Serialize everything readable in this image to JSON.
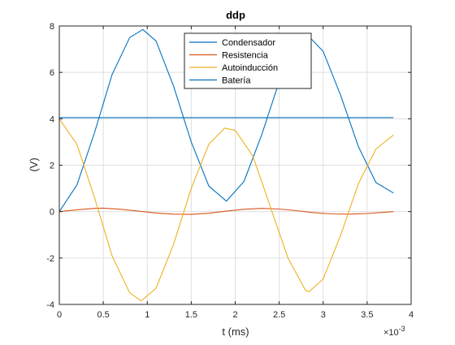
{
  "chart_data": {
    "type": "line",
    "title": "ddp",
    "xlabel": "t (ms)",
    "ylabel": "(V)",
    "x_multiplier": "×10",
    "x_multiplier_exp": "-3",
    "xlim": [
      0,
      0.004
    ],
    "ylim": [
      -4,
      8
    ],
    "xticks": [
      0,
      0.0005,
      0.001,
      0.0015,
      0.002,
      0.0025,
      0.003,
      0.0035,
      0.004
    ],
    "xtick_labels": [
      "0",
      "0.5",
      "1",
      "1.5",
      "2",
      "2.5",
      "3",
      "3.5",
      "4"
    ],
    "yticks": [
      -4,
      -2,
      0,
      2,
      4,
      6,
      8
    ],
    "ytick_labels": [
      "-4",
      "-2",
      "0",
      "2",
      "4",
      "6",
      "8"
    ],
    "grid": true,
    "legend_position": "top-center",
    "series": [
      {
        "name": "Condensador",
        "color": "#0072BD",
        "x": [
          0,
          0.0002,
          0.0004,
          0.0006,
          0.0008,
          0.00095,
          0.0011,
          0.0013,
          0.0015,
          0.0017,
          0.0019,
          0.0021,
          0.0023,
          0.0025,
          0.0027,
          0.00285,
          0.003,
          0.0032,
          0.0034,
          0.0036,
          0.0038
        ],
        "y": [
          0,
          1.15,
          3.4,
          5.9,
          7.5,
          7.85,
          7.35,
          5.4,
          3.0,
          1.1,
          0.45,
          1.3,
          3.3,
          5.6,
          7.2,
          7.5,
          6.9,
          5.0,
          2.8,
          1.25,
          0.8
        ]
      },
      {
        "name": "Resistencia",
        "color": "#D95319",
        "x": [
          0,
          0.0002,
          0.0004,
          0.0005,
          0.0007,
          0.0009,
          0.0011,
          0.0013,
          0.0015,
          0.0017,
          0.0019,
          0.0021,
          0.0023,
          0.0025,
          0.0027,
          0.0029,
          0.0031,
          0.0033,
          0.0035,
          0.0038
        ],
        "y": [
          0,
          0.08,
          0.14,
          0.15,
          0.1,
          0.02,
          -0.06,
          -0.11,
          -0.12,
          -0.07,
          0.02,
          0.1,
          0.14,
          0.11,
          0.04,
          -0.05,
          -0.1,
          -0.11,
          -0.08,
          0.0
        ]
      },
      {
        "name": "Autoinducción",
        "color": "#EDB120",
        "x": [
          0,
          0.0002,
          0.0004,
          0.0006,
          0.0008,
          0.00093,
          0.0011,
          0.0013,
          0.0015,
          0.0017,
          0.00188,
          0.002,
          0.0022,
          0.0024,
          0.0026,
          0.0028,
          0.00284,
          0.003,
          0.0032,
          0.0034,
          0.0036,
          0.0038
        ],
        "y": [
          4.0,
          2.9,
          0.6,
          -1.9,
          -3.5,
          -3.85,
          -3.3,
          -1.4,
          1.0,
          2.9,
          3.6,
          3.5,
          2.4,
          0.2,
          -2.0,
          -3.4,
          -3.45,
          -2.9,
          -1.0,
          1.2,
          2.7,
          3.3
        ]
      },
      {
        "name": "Batería",
        "color": "#0072BD",
        "x": [
          0,
          0.0038
        ],
        "y": [
          4.05,
          4.05
        ]
      }
    ]
  }
}
